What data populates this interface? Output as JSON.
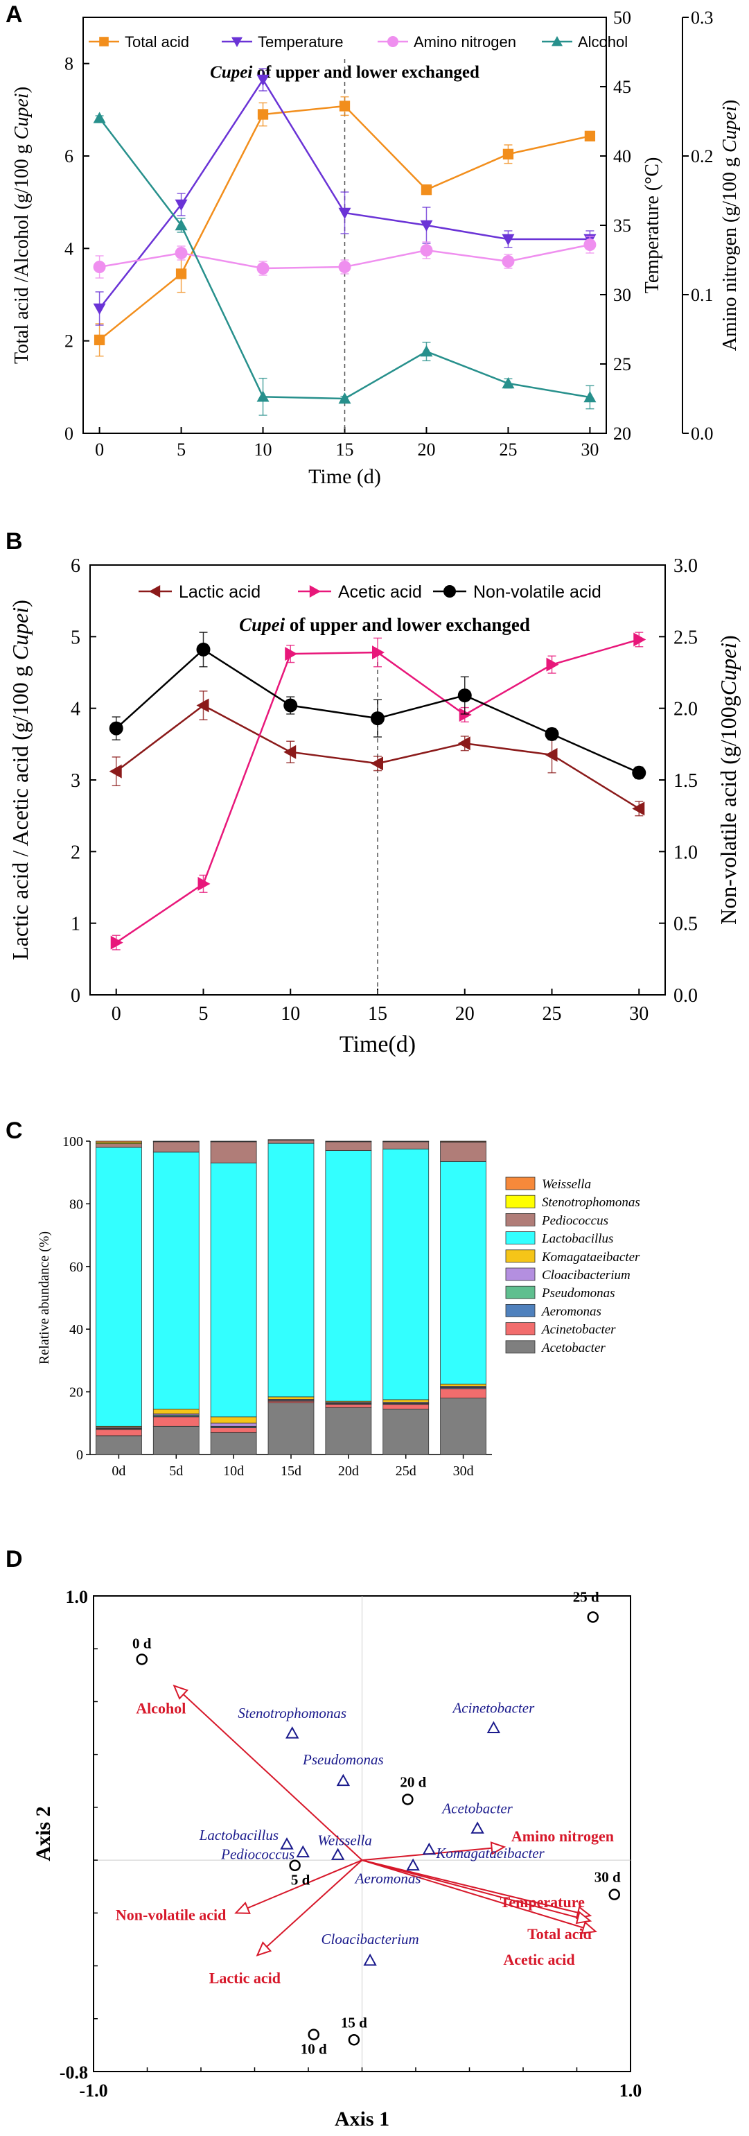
{
  "figure": {
    "panels": [
      "A",
      "B",
      "C",
      "D"
    ]
  },
  "chart_data": [
    {
      "panel": "A",
      "type": "line",
      "annotation": {
        "bold_italic": "Cupei",
        "rest": " of upper and lower exchanged"
      },
      "x": [
        0,
        5,
        10,
        15,
        20,
        25,
        30
      ],
      "xlabel": "Time (d)",
      "xticks": [
        0,
        5,
        10,
        15,
        20,
        25,
        30
      ],
      "xlim": [
        -1,
        31
      ],
      "exchange_day": 15,
      "ylabel": "Total acid /Alcohol  (g/100 g Cupei)",
      "ylabel_parts": {
        "pre": "Total acid /Alcohol  (g/100 g ",
        "italic": "Cupei",
        "post": ")"
      },
      "ylim": [
        0,
        9
      ],
      "yticks": [
        0,
        2,
        4,
        6,
        8
      ],
      "ylabel2": "Temperature (°C)",
      "ylim2": [
        20,
        50
      ],
      "yticks2": [
        20,
        25,
        30,
        35,
        40,
        45,
        50
      ],
      "ylabel3": "Amino nitrogen (g/100 g Cupei)",
      "ylabel3_parts": {
        "pre": "Amino nitrogen (g/100 g ",
        "italic": "Cupei",
        "post": ")"
      },
      "ylim3": [
        0,
        0.3
      ],
      "yticks3": [
        "0.0",
        "0.1",
        "0.2",
        "0.3"
      ],
      "series": [
        {
          "name": "Total acid",
          "axis": "left",
          "color": "#f28e1c",
          "marker": "square",
          "values": [
            2.02,
            3.45,
            6.9,
            7.08,
            5.27,
            6.04,
            6.43
          ],
          "errors": [
            0.35,
            0.4,
            0.25,
            0.2,
            0.1,
            0.2,
            0.1
          ]
        },
        {
          "name": "Temperature",
          "axis": "right",
          "color": "#6a33d6",
          "marker": "triangle-down",
          "values": [
            29,
            36.5,
            45.5,
            35.9,
            35,
            34,
            34
          ],
          "errors": [
            1.2,
            0.8,
            0.8,
            1.5,
            1.3,
            0.6,
            0.6
          ]
        },
        {
          "name": "Amino nitrogen",
          "axis": "third",
          "color": "#ef8fef",
          "marker": "circle",
          "values": [
            0.12,
            0.13,
            0.119,
            0.12,
            0.132,
            0.124,
            0.136
          ],
          "errors": [
            0.008,
            0.005,
            0.005,
            0.005,
            0.006,
            0.005,
            0.006
          ]
        },
        {
          "name": "Alcohol",
          "axis": "left",
          "color": "#27908c",
          "marker": "triangle-up",
          "values": [
            6.82,
            4.5,
            0.79,
            0.75,
            1.77,
            1.08,
            0.78
          ],
          "errors": [
            0.05,
            0.15,
            0.4,
            0.05,
            0.2,
            0.1,
            0.25
          ]
        }
      ]
    },
    {
      "panel": "B",
      "type": "line",
      "annotation": {
        "bold_italic": "Cupei",
        "rest": " of upper and lower exchanged"
      },
      "x": [
        0,
        5,
        10,
        15,
        20,
        25,
        30
      ],
      "xlabel": "Time(d)",
      "xticks": [
        0,
        5,
        10,
        15,
        20,
        25,
        30
      ],
      "xlim": [
        -1.5,
        31.5
      ],
      "exchange_day": 15,
      "ylabel": "Lactic acid / Acetic acid (g/100 g Cupei)",
      "ylabel_parts": {
        "pre": "Lactic acid / Acetic acid (g/100 g ",
        "italic": "Cupei",
        "post": ")"
      },
      "ylim": [
        0,
        6
      ],
      "yticks": [
        0,
        1,
        2,
        3,
        4,
        5,
        6
      ],
      "ylabel2": "Non-volatile acid (g/100gCupei)",
      "ylabel2_parts": {
        "pre": "Non-volatile acid (g/100g",
        "italic": "Cupei",
        "post": ")"
      },
      "ylim2": [
        0,
        3
      ],
      "yticks2": [
        "0.0",
        "0.5",
        "1.0",
        "1.5",
        "2.0",
        "2.5",
        "3.0"
      ],
      "series": [
        {
          "name": "Lactic acid",
          "axis": "left",
          "color": "#8b1a1a",
          "marker": "triangle-left",
          "values": [
            3.12,
            4.04,
            3.39,
            3.23,
            3.51,
            3.35,
            2.6
          ],
          "errors": [
            0.2,
            0.2,
            0.15,
            0.1,
            0.1,
            0.25,
            0.1
          ]
        },
        {
          "name": "Acetic acid",
          "axis": "left",
          "color": "#e8177a",
          "marker": "triangle-right",
          "values": [
            0.73,
            1.55,
            4.76,
            4.78,
            3.91,
            4.61,
            4.96
          ],
          "errors": [
            0.1,
            0.12,
            0.12,
            0.2,
            0.1,
            0.12,
            0.1
          ]
        },
        {
          "name": "Non-volatile acid",
          "axis": "right",
          "color": "#000000",
          "marker": "circle",
          "values": [
            1.86,
            2.41,
            2.02,
            1.93,
            2.09,
            1.82,
            1.55
          ],
          "errors": [
            0.08,
            0.12,
            0.06,
            0.13,
            0.13,
            0.04,
            0.04
          ]
        }
      ]
    },
    {
      "panel": "C",
      "type": "bar",
      "stacked": true,
      "categories": [
        "0d",
        "5d",
        "10d",
        "15d",
        "20d",
        "25d",
        "30d"
      ],
      "ylabel": "Relative abundance (%)",
      "ylim": [
        0,
        100
      ],
      "yticks": [
        0,
        20,
        40,
        60,
        80,
        100
      ],
      "series": [
        {
          "name": "Acetobacter",
          "color": "#7f7f7f",
          "values": [
            6,
            9,
            7,
            16.5,
            15,
            14.5,
            18
          ]
        },
        {
          "name": "Acinetobacter",
          "color": "#f26d6d",
          "values": [
            2,
            3,
            1.5,
            0.5,
            1,
            1.5,
            3
          ]
        },
        {
          "name": "Aeromonas",
          "color": "#4f81bd",
          "values": [
            0.2,
            0.3,
            0.3,
            0.1,
            0.2,
            0.2,
            0.3
          ]
        },
        {
          "name": "Pseudomonas",
          "color": "#5fbf8f",
          "values": [
            0.2,
            0.3,
            0.2,
            0.2,
            0.2,
            0.2,
            0.2
          ]
        },
        {
          "name": "Cloacibacterium",
          "color": "#b48fe0",
          "values": [
            0.3,
            0.4,
            1.0,
            0.3,
            0.3,
            0.3,
            0.3
          ]
        },
        {
          "name": "Komagataeibacter",
          "color": "#f5c518",
          "values": [
            0.3,
            1.5,
            2.0,
            0.8,
            0.3,
            0.8,
            0.7
          ]
        },
        {
          "name": "Lactobacillus",
          "color": "#33ffff",
          "values": [
            89,
            82,
            81,
            80.9,
            80,
            80,
            71
          ]
        },
        {
          "name": "Pediococcus",
          "color": "#b07d78",
          "values": [
            1.2,
            3.3,
            6.8,
            1.0,
            2.8,
            2.3,
            6.2
          ]
        },
        {
          "name": "Stenotrophomonas",
          "color": "#ffff00",
          "values": [
            0.4,
            0.1,
            0.1,
            0.1,
            0.1,
            0.1,
            0.1
          ]
        },
        {
          "name": "Weissella",
          "color": "#f7893a",
          "values": [
            0.4,
            0.1,
            0.1,
            0.1,
            0.1,
            0.1,
            0.2
          ]
        }
      ]
    },
    {
      "panel": "D",
      "type": "scatter",
      "kind": "RDA biplot",
      "xlabel": "Axis 1",
      "ylabel": "Axis 2",
      "xlim": [
        -1.0,
        1.0
      ],
      "ylim": [
        -0.8,
        1.0
      ],
      "xtick_labels": [
        "-1.0",
        "1.0"
      ],
      "ytick_labels": [
        "1.0",
        "-0.8"
      ],
      "samples": [
        {
          "label": "0 d",
          "x": -0.82,
          "y": 0.76
        },
        {
          "label": "5 d",
          "x": -0.25,
          "y": -0.02
        },
        {
          "label": "10 d",
          "x": -0.18,
          "y": -0.66
        },
        {
          "label": "15 d",
          "x": -0.03,
          "y": -0.68
        },
        {
          "label": "20 d",
          "x": 0.17,
          "y": 0.23
        },
        {
          "label": "25 d",
          "x": 0.86,
          "y": 0.92
        },
        {
          "label": "30 d",
          "x": 0.94,
          "y": -0.13
        }
      ],
      "species": [
        {
          "label": "Stenotrophomonas",
          "x": -0.26,
          "y": 0.48
        },
        {
          "label": "Acinetobacter",
          "x": 0.49,
          "y": 0.5
        },
        {
          "label": "Pseudomonas",
          "x": -0.07,
          "y": 0.3
        },
        {
          "label": "Acetobacter",
          "x": 0.43,
          "y": 0.12
        },
        {
          "label": "Lactobacillus",
          "x": -0.28,
          "y": 0.06
        },
        {
          "label": "Weissella",
          "x": -0.09,
          "y": 0.02
        },
        {
          "label": "Pediococcus",
          "x": -0.22,
          "y": 0.03
        },
        {
          "label": "Komagataeibacter",
          "x": 0.25,
          "y": 0.04
        },
        {
          "label": "Aeromonas",
          "x": 0.19,
          "y": -0.02
        },
        {
          "label": "Cloacibacterium",
          "x": 0.03,
          "y": -0.38
        }
      ],
      "env_vectors": [
        {
          "label": "Alcohol",
          "x": -0.7,
          "y": 0.66
        },
        {
          "label": "Amino nitrogen",
          "x": 0.53,
          "y": 0.05
        },
        {
          "label": "Temperature",
          "x": 0.85,
          "y": -0.21
        },
        {
          "label": "Total acid",
          "x": 0.85,
          "y": -0.23
        },
        {
          "label": "Acetic acid",
          "x": 0.87,
          "y": -0.27
        },
        {
          "label": "Non-volatile acid",
          "x": -0.47,
          "y": -0.2
        },
        {
          "label": "Lactic acid",
          "x": -0.39,
          "y": -0.36
        }
      ],
      "species_color": "#1a1a8c",
      "env_color": "#d7182a",
      "sample_color": "#000000"
    }
  ]
}
